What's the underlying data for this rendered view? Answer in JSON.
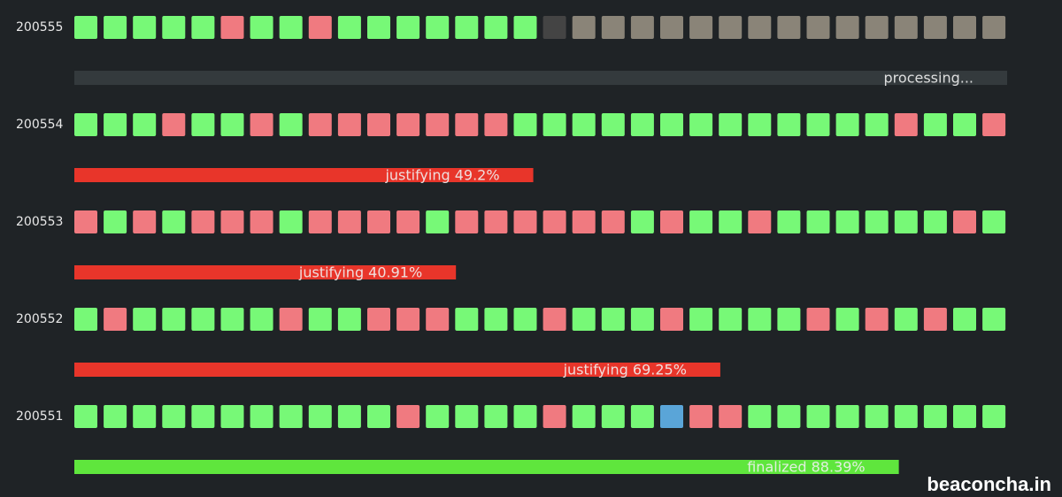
{
  "epochs": [
    {
      "epoch": "200555",
      "status_label": "processing...",
      "track_color": "#343a3d",
      "slots": [
        "#77f977",
        "#77f977",
        "#77f977",
        "#77f977",
        "#77f977",
        "#f07a80",
        "#77f977",
        "#77f977",
        "#f07a80",
        "#77f977",
        "#77f977",
        "#77f977",
        "#77f977",
        "#77f977",
        "#77f977",
        "#77f977",
        "#444444",
        "#8a8478",
        "#8a8478",
        "#8a8478",
        "#8a8478",
        "#8a8478",
        "#8a8478",
        "#8a8478",
        "#8a8478",
        "#8a8478",
        "#8a8478",
        "#8a8478",
        "#8a8478",
        "#8a8478",
        "#8a8478",
        "#8a8478"
      ]
    },
    {
      "epoch": "200554",
      "status_label": "justifying 49.2%",
      "progress": 49.2,
      "bar_color": "#e8352a",
      "slots": [
        "#77f977",
        "#77f977",
        "#77f977",
        "#f07a80",
        "#77f977",
        "#77f977",
        "#f07a80",
        "#77f977",
        "#f07a80",
        "#f07a80",
        "#f07a80",
        "#f07a80",
        "#f07a80",
        "#f07a80",
        "#f07a80",
        "#77f977",
        "#77f977",
        "#77f977",
        "#77f977",
        "#77f977",
        "#77f977",
        "#77f977",
        "#77f977",
        "#77f977",
        "#77f977",
        "#77f977",
        "#77f977",
        "#77f977",
        "#f07a80",
        "#77f977",
        "#77f977",
        "#f07a80"
      ]
    },
    {
      "epoch": "200553",
      "status_label": "justifying 40.91%",
      "progress": 40.91,
      "bar_color": "#e8352a",
      "slots": [
        "#f07a80",
        "#77f977",
        "#f07a80",
        "#77f977",
        "#f07a80",
        "#f07a80",
        "#f07a80",
        "#77f977",
        "#f07a80",
        "#f07a80",
        "#f07a80",
        "#f07a80",
        "#77f977",
        "#f07a80",
        "#f07a80",
        "#f07a80",
        "#f07a80",
        "#f07a80",
        "#f07a80",
        "#77f977",
        "#f07a80",
        "#77f977",
        "#77f977",
        "#f07a80",
        "#77f977",
        "#77f977",
        "#77f977",
        "#77f977",
        "#77f977",
        "#77f977",
        "#f07a80",
        "#77f977"
      ]
    },
    {
      "epoch": "200552",
      "status_label": "justifying 69.25%",
      "progress": 69.25,
      "bar_color": "#e8352a",
      "slots": [
        "#77f977",
        "#f07a80",
        "#77f977",
        "#77f977",
        "#77f977",
        "#77f977",
        "#77f977",
        "#f07a80",
        "#77f977",
        "#77f977",
        "#f07a80",
        "#f07a80",
        "#f07a80",
        "#77f977",
        "#77f977",
        "#77f977",
        "#f07a80",
        "#77f977",
        "#77f977",
        "#77f977",
        "#f07a80",
        "#77f977",
        "#77f977",
        "#77f977",
        "#77f977",
        "#f07a80",
        "#77f977",
        "#f07a80",
        "#77f977",
        "#f07a80",
        "#77f977",
        "#77f977"
      ]
    },
    {
      "epoch": "200551",
      "status_label": "finalized 88.39%",
      "progress": 88.39,
      "bar_color": "#5fe63d",
      "slots": [
        "#77f977",
        "#77f977",
        "#77f977",
        "#77f977",
        "#77f977",
        "#77f977",
        "#77f977",
        "#77f977",
        "#77f977",
        "#77f977",
        "#77f977",
        "#f07a80",
        "#77f977",
        "#77f977",
        "#77f977",
        "#77f977",
        "#f07a80",
        "#77f977",
        "#77f977",
        "#77f977",
        "#5aa5d8",
        "#f07a80",
        "#f07a80",
        "#77f977",
        "#77f977",
        "#77f977",
        "#77f977",
        "#77f977",
        "#77f977",
        "#77f977",
        "#77f977",
        "#77f977"
      ]
    }
  ],
  "watermark": "beaconcha.in"
}
